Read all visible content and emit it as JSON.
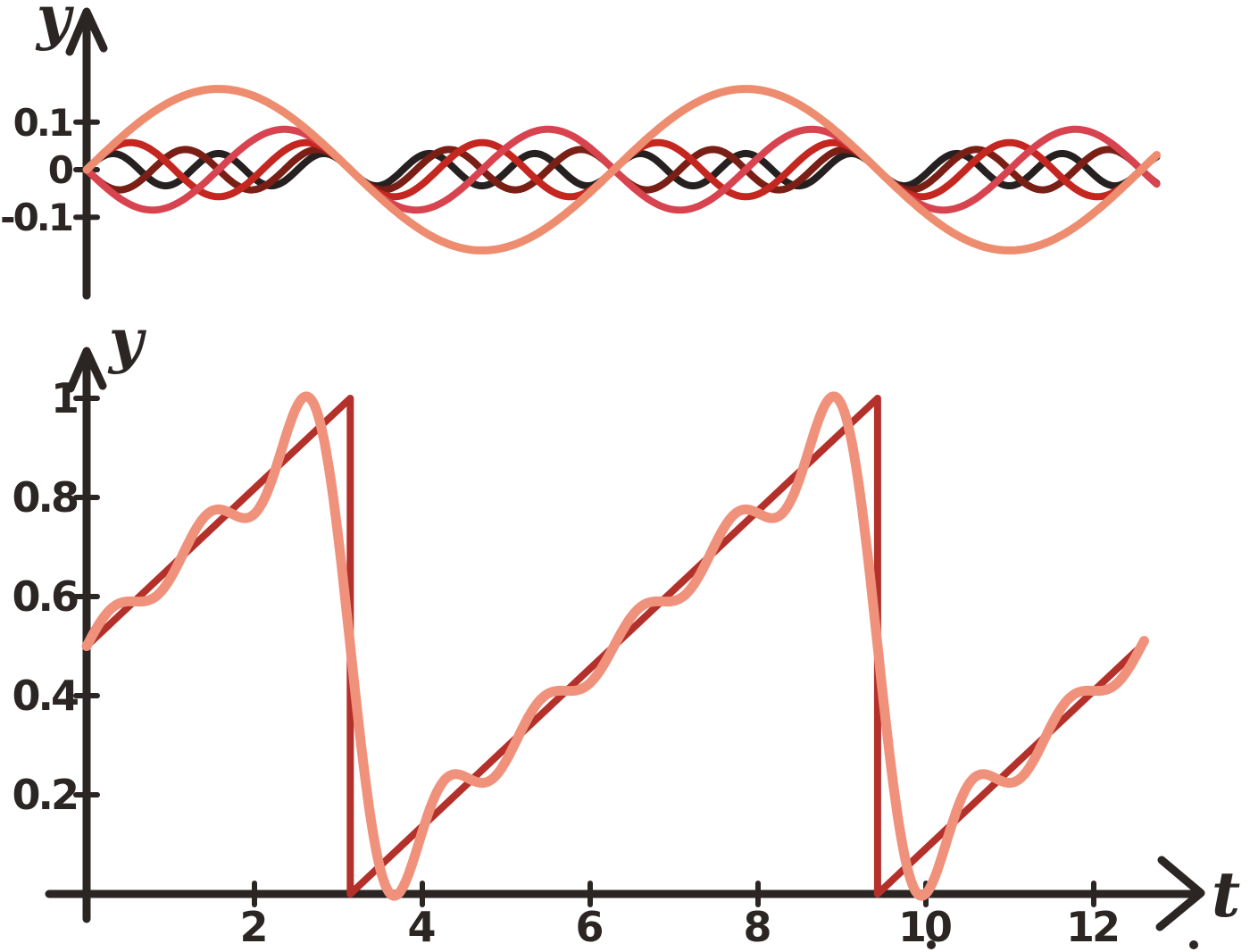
{
  "figure": {
    "background": "#ffffff",
    "ink_color": "#2b2624"
  },
  "chart_data": [
    {
      "id": "harmonic-components",
      "type": "line",
      "title": "",
      "xlabel": "",
      "ylabel": "y",
      "grid": false,
      "legend": "none",
      "x_range": [
        0,
        12.75
      ],
      "y_range": [
        -0.19,
        0.19
      ],
      "y_ticks": [
        {
          "value": 0.1,
          "label": "0.1"
        },
        {
          "value": 0,
          "label": "0"
        },
        {
          "value": -0.1,
          "label": "-0.1"
        }
      ],
      "x_ticks": [],
      "series": [
        {
          "name": "harmonic-1",
          "form": "sine",
          "k": 1,
          "amplitude": 0.17,
          "sign": 1,
          "color": "#ee8c6f",
          "line_width": 9
        },
        {
          "name": "harmonic-2",
          "form": "sine",
          "k": 2,
          "amplitude": 0.085,
          "sign": -1,
          "color": "#d84350",
          "line_width": 8
        },
        {
          "name": "harmonic-3",
          "form": "sine",
          "k": 3,
          "amplitude": 0.057,
          "sign": 1,
          "color": "#c42720",
          "line_width": 8
        },
        {
          "name": "harmonic-4",
          "form": "sine",
          "k": 4,
          "amplitude": 0.0425,
          "sign": -1,
          "color": "#7a1f16",
          "line_width": 8
        },
        {
          "name": "harmonic-5",
          "form": "sine",
          "k": 5,
          "amplitude": 0.034,
          "sign": 1,
          "color": "#262120",
          "line_width": 8
        }
      ]
    },
    {
      "id": "sawtooth-and-partial-sum",
      "type": "line",
      "title": "",
      "xlabel": "t",
      "ylabel": "y",
      "grid": false,
      "legend": "none",
      "x_range": [
        0,
        12.6
      ],
      "y_range": [
        0,
        1.05
      ],
      "y_ticks": [
        {
          "value": 0.2,
          "label": "0.2"
        },
        {
          "value": 0.4,
          "label": "0.4"
        },
        {
          "value": 0.6,
          "label": "0.6"
        },
        {
          "value": 0.8,
          "label": "0.8"
        },
        {
          "value": 1,
          "label": "1"
        }
      ],
      "x_ticks": [
        {
          "value": 2,
          "label": "2"
        },
        {
          "value": 4,
          "label": "4"
        },
        {
          "value": 6,
          "label": "6"
        },
        {
          "value": 8,
          "label": "8"
        },
        {
          "value": 10,
          "label": "10"
        },
        {
          "value": 12,
          "label": "12"
        }
      ],
      "series": [
        {
          "name": "sawtooth-wave",
          "form": "sawtooth",
          "period": 6.2832,
          "value_at_t0": 0.5,
          "min": 0,
          "max": 1,
          "color": "#b4302a",
          "line_width": 8
        },
        {
          "name": "fourier-partial-sum",
          "form": "fourier_partial_sum",
          "n_terms": 5,
          "mean": 0.5,
          "coefficient": 0.3183,
          "color": "#f0917b",
          "line_width": 11
        }
      ]
    }
  ]
}
